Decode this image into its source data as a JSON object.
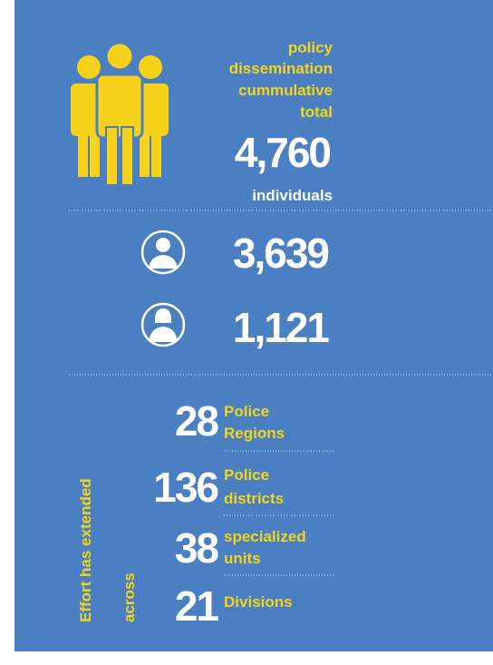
{
  "header": {
    "label_lines": [
      "policy",
      "dissemination",
      "cummulative",
      "total"
    ],
    "total": "4,760",
    "unit": "individuals"
  },
  "gender": [
    {
      "count": "3,639"
    },
    {
      "count": "1,121"
    }
  ],
  "reach": {
    "label_lines": [
      "Effort has extended",
      "across"
    ],
    "items": [
      {
        "count": "28",
        "label_lines": [
          "Police",
          "Regions"
        ]
      },
      {
        "count": "136",
        "label_lines": [
          "Police",
          "districts"
        ]
      },
      {
        "count": "38",
        "label_lines": [
          "specialized",
          "units"
        ]
      },
      {
        "count": "21",
        "label_lines": [
          "Divisions"
        ]
      }
    ]
  }
}
